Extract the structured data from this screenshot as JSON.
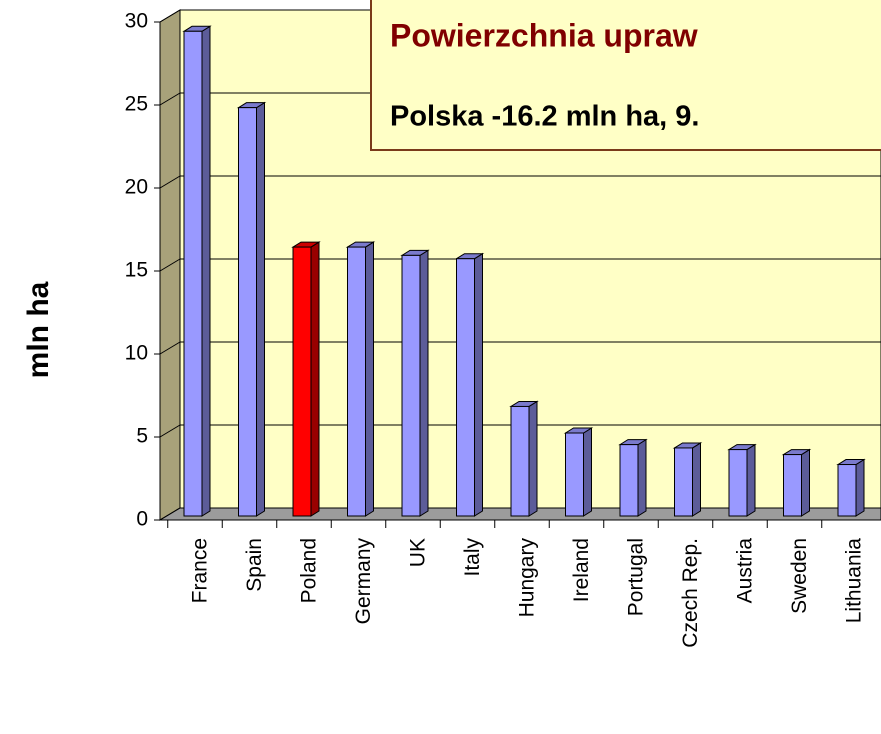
{
  "chart_data": {
    "type": "bar3d",
    "title": "Powierzchnia upraw",
    "subtitle": "Polska -16.2 mln ha, 9.",
    "ylabel": "mln ha",
    "categories": [
      "France",
      "Spain",
      "Poland",
      "Germany",
      "UK",
      "Italy",
      "Hungary",
      "Ireland",
      "Portugal",
      "Czech Rep.",
      "Austria",
      "Sweden",
      "Lithuania"
    ],
    "values": [
      29.2,
      24.6,
      16.2,
      16.2,
      15.7,
      15.5,
      6.6,
      5.0,
      4.3,
      4.1,
      4.0,
      3.7,
      3.1
    ],
    "colors": [
      "#9999ff",
      "#9999ff",
      "#ff0000",
      "#9999ff",
      "#9999ff",
      "#9999ff",
      "#9999ff",
      "#9999ff",
      "#9999ff",
      "#9999ff",
      "#9999ff",
      "#9999ff",
      "#9999ff"
    ],
    "ylim": [
      0,
      30
    ],
    "yticks": [
      0,
      5,
      10,
      15,
      20,
      25,
      30
    ],
    "grid": true
  }
}
